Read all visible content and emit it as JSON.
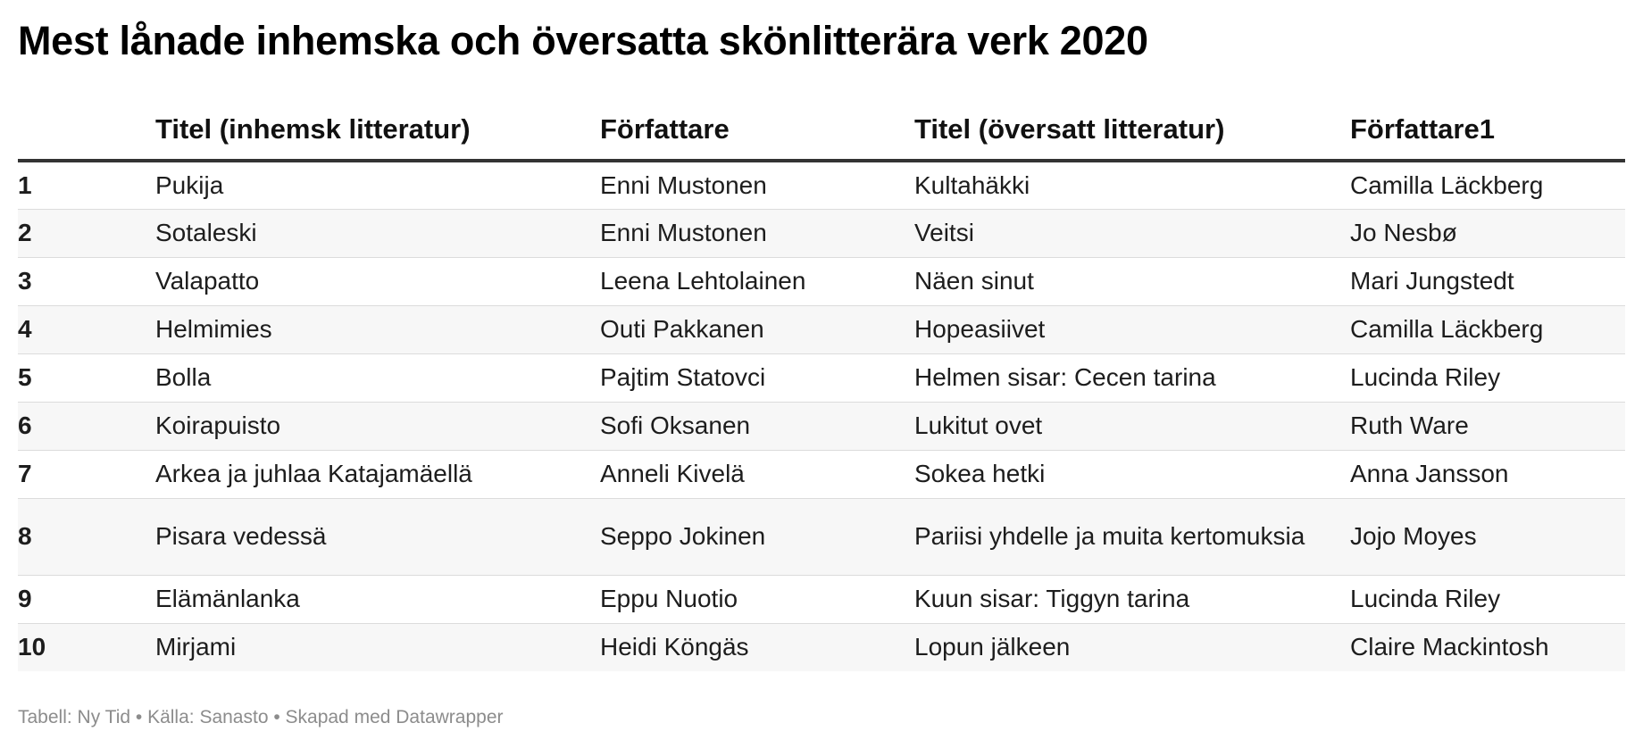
{
  "title": "Mest lånade inhemska och översatta skönlitterära verk 2020",
  "footer": "Tabell: Ny Tid • Källa: Sanasto • Skapad med Datawrapper",
  "chart_data": {
    "type": "table",
    "columns": [
      "",
      "Titel (inhemsk litteratur)",
      "Författare",
      "Titel (översatt litteratur)",
      "Författare1"
    ],
    "rows": [
      [
        "1",
        "Pukija",
        "Enni Mustonen",
        "Kultahäkki",
        "Camilla Läckberg"
      ],
      [
        "2",
        "Sotaleski",
        "Enni Mustonen",
        "Veitsi",
        "Jo Nesbø"
      ],
      [
        "3",
        "Valapatto",
        "Leena Lehtolainen",
        "Näen sinut",
        "Mari Jungstedt"
      ],
      [
        "4",
        "Helmimies",
        "Outi Pakkanen",
        "Hopeasiivet",
        "Camilla Läckberg"
      ],
      [
        "5",
        "Bolla",
        "Pajtim Statovci",
        "Helmen sisar: Cecen tarina",
        "Lucinda Riley"
      ],
      [
        "6",
        "Koirapuisto",
        "Sofi Oksanen",
        "Lukitut ovet",
        "Ruth Ware"
      ],
      [
        "7",
        "Arkea ja juhlaa Katajamäellä",
        "Anneli Kivelä",
        "Sokea hetki",
        "Anna Jansson"
      ],
      [
        "8",
        "Pisara vedessä",
        "Seppo Jokinen",
        "Pariisi yhdelle ja muita kertomuksia",
        "Jojo Moyes"
      ],
      [
        "9",
        "Elämänlanka",
        "Eppu Nuotio",
        "Kuun sisar: Tiggyn tarina",
        "Lucinda Riley"
      ],
      [
        "10",
        "Mirjami",
        "Heidi Köngäs",
        "Lopun jälkeen",
        "Claire Mackintosh"
      ]
    ]
  },
  "colors": {
    "translated_text": "#808080",
    "header_rule": "#333333",
    "stripe": "#f7f7f7",
    "footer_text": "#8c8c8c"
  }
}
